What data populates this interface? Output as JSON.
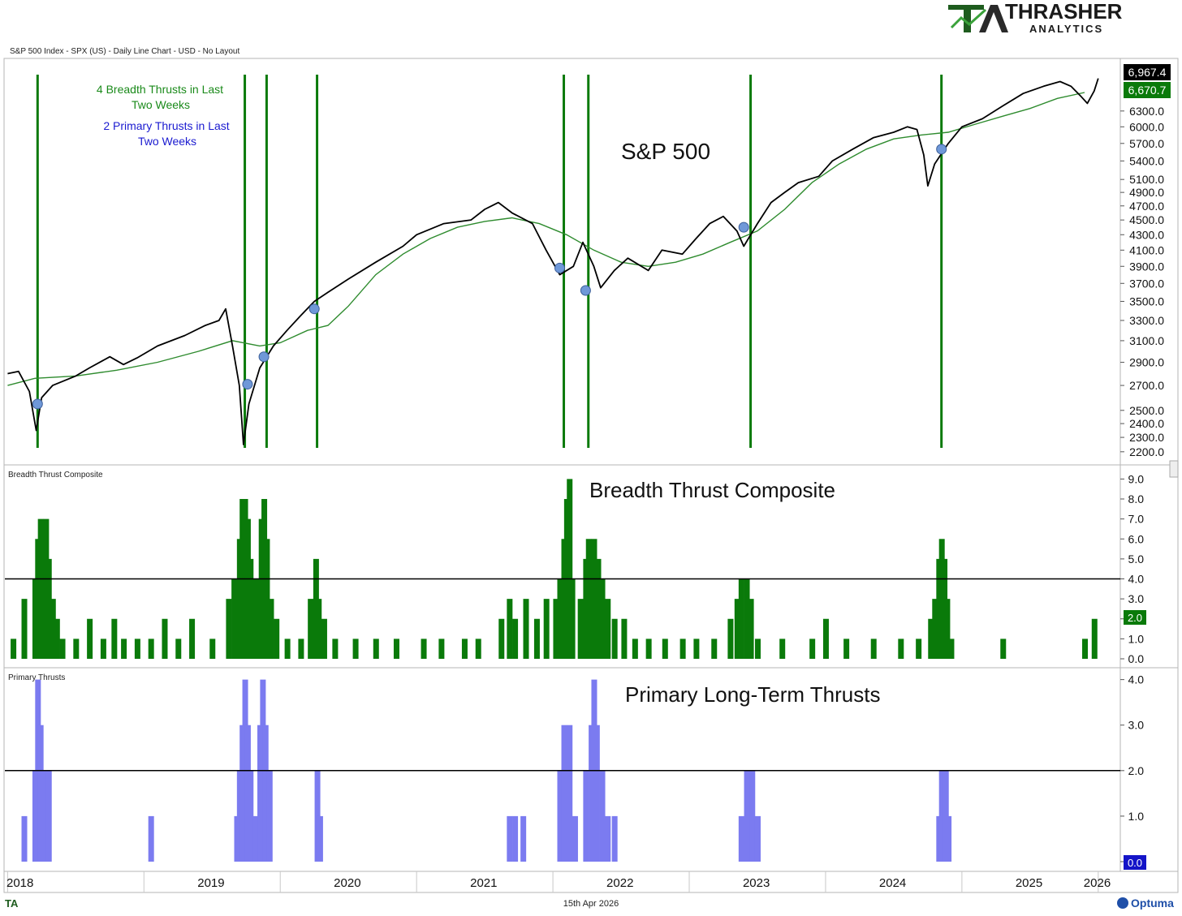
{
  "brand": {
    "name": "THRASHER",
    "sub": "ANALYTICS",
    "logo_mark": "TA"
  },
  "panel_subtitles": {
    "price": "S&P 500 Index - SPX (US) - Daily Line Chart - USD - No Layout",
    "composite": "Breadth Thrust Composite",
    "primary": "Primary Thrusts"
  },
  "panel_titles": {
    "price": "S&P 500",
    "composite": "Breadth Thrust Composite",
    "primary": "Primary Long-Term Thrusts"
  },
  "annotations": {
    "breadth": [
      "4 Breadth Thrusts in Last",
      "Two Weeks"
    ],
    "primary": [
      "2 Primary Thrusts in Last",
      "Two Weeks"
    ]
  },
  "value_tags": {
    "price": "6,967.4",
    "ma": "6,670.7",
    "composite": "2.0",
    "primary": "0.0"
  },
  "footer": {
    "date": "15th Apr 2026",
    "vendor": "Optuma",
    "logo": "TA"
  },
  "colors": {
    "thrust_line": "#0a7a0a",
    "composite_bar": "#0a7a0a",
    "primary_bar": "#7b7bf0",
    "ma_line": "#2e8b2e",
    "dot": "#6f98d8",
    "annotation_green": "#1a8a1a",
    "annotation_blue": "#1a1ad0"
  },
  "chart_data": [
    {
      "type": "line",
      "name": "S&P 500",
      "x_axis": [
        "2018",
        "2019",
        "2020",
        "2021",
        "2022",
        "2023",
        "2024",
        "2025",
        "2026"
      ],
      "y_ticks": [
        2200,
        2300,
        2400,
        2500,
        2700,
        2900,
        3100,
        3300,
        3500,
        3700,
        3900,
        4100,
        4300,
        4500,
        4700,
        4900,
        5100,
        5400,
        5700,
        6000,
        6300
      ],
      "ylim": [
        2150,
        7300
      ],
      "scale": "log",
      "series": [
        {
          "name": "S&P 500",
          "points": [
            [
              2018.0,
              2800
            ],
            [
              2018.08,
              2820
            ],
            [
              2018.16,
              2650
            ],
            [
              2018.21,
              2350
            ],
            [
              2018.25,
              2600
            ],
            [
              2018.33,
              2700
            ],
            [
              2018.5,
              2780
            ],
            [
              2018.6,
              2850
            ],
            [
              2018.75,
              2950
            ],
            [
              2018.85,
              2880
            ],
            [
              2018.95,
              2940
            ],
            [
              2019.1,
              3050
            ],
            [
              2019.3,
              3150
            ],
            [
              2019.45,
              3250
            ],
            [
              2019.55,
              3300
            ],
            [
              2019.6,
              3420
            ],
            [
              2019.65,
              3050
            ],
            [
              2019.7,
              2700
            ],
            [
              2019.73,
              2250
            ],
            [
              2019.77,
              2550
            ],
            [
              2019.85,
              2850
            ],
            [
              2019.95,
              3050
            ],
            [
              2020.05,
              3200
            ],
            [
              2020.15,
              3350
            ],
            [
              2020.25,
              3500
            ],
            [
              2020.35,
              3600
            ],
            [
              2020.5,
              3750
            ],
            [
              2020.7,
              3950
            ],
            [
              2020.9,
              4150
            ],
            [
              2021.0,
              4300
            ],
            [
              2021.2,
              4450
            ],
            [
              2021.4,
              4500
            ],
            [
              2021.5,
              4650
            ],
            [
              2021.55,
              4700
            ],
            [
              2021.6,
              4750
            ],
            [
              2021.7,
              4600
            ],
            [
              2021.85,
              4450
            ],
            [
              2021.95,
              4100
            ],
            [
              2022.05,
              3800
            ],
            [
              2022.15,
              3900
            ],
            [
              2022.22,
              4200
            ],
            [
              2022.3,
              3900
            ],
            [
              2022.35,
              3650
            ],
            [
              2022.45,
              3850
            ],
            [
              2022.55,
              4000
            ],
            [
              2022.7,
              3850
            ],
            [
              2022.8,
              4100
            ],
            [
              2022.95,
              4050
            ],
            [
              2023.05,
              4250
            ],
            [
              2023.15,
              4450
            ],
            [
              2023.25,
              4550
            ],
            [
              2023.35,
              4350
            ],
            [
              2023.4,
              4150
            ],
            [
              2023.5,
              4450
            ],
            [
              2023.6,
              4750
            ],
            [
              2023.7,
              4900
            ],
            [
              2023.8,
              5050
            ],
            [
              2023.95,
              5150
            ],
            [
              2024.05,
              5400
            ],
            [
              2024.2,
              5600
            ],
            [
              2024.35,
              5800
            ],
            [
              2024.5,
              5900
            ],
            [
              2024.6,
              6000
            ],
            [
              2024.67,
              5950
            ],
            [
              2024.72,
              5500
            ],
            [
              2024.75,
              5000
            ],
            [
              2024.8,
              5350
            ],
            [
              2024.9,
              5700
            ],
            [
              2025.0,
              6000
            ],
            [
              2025.15,
              6150
            ],
            [
              2025.3,
              6400
            ],
            [
              2025.45,
              6650
            ],
            [
              2025.6,
              6800
            ],
            [
              2025.72,
              6900
            ],
            [
              2025.8,
              6800
            ],
            [
              2025.87,
              6600
            ],
            [
              2025.92,
              6450
            ],
            [
              2025.97,
              6700
            ],
            [
              2026.0,
              6967.4
            ]
          ]
        },
        {
          "name": "Moving Average",
          "points": [
            [
              2018.0,
              2700
            ],
            [
              2018.2,
              2760
            ],
            [
              2018.5,
              2780
            ],
            [
              2018.8,
              2830
            ],
            [
              2019.1,
              2900
            ],
            [
              2019.4,
              3000
            ],
            [
              2019.65,
              3100
            ],
            [
              2019.85,
              3050
            ],
            [
              2020.0,
              3080
            ],
            [
              2020.2,
              3200
            ],
            [
              2020.35,
              3250
            ],
            [
              2020.5,
              3450
            ],
            [
              2020.7,
              3800
            ],
            [
              2020.9,
              4050
            ],
            [
              2021.1,
              4250
            ],
            [
              2021.3,
              4400
            ],
            [
              2021.5,
              4480
            ],
            [
              2021.7,
              4530
            ],
            [
              2021.9,
              4450
            ],
            [
              2022.1,
              4300
            ],
            [
              2022.3,
              4100
            ],
            [
              2022.5,
              3950
            ],
            [
              2022.7,
              3900
            ],
            [
              2022.9,
              3950
            ],
            [
              2023.1,
              4050
            ],
            [
              2023.3,
              4200
            ],
            [
              2023.5,
              4350
            ],
            [
              2023.7,
              4650
            ],
            [
              2023.9,
              5050
            ],
            [
              2024.1,
              5350
            ],
            [
              2024.3,
              5600
            ],
            [
              2024.5,
              5780
            ],
            [
              2024.7,
              5850
            ],
            [
              2024.9,
              5900
            ],
            [
              2025.1,
              6050
            ],
            [
              2025.3,
              6200
            ],
            [
              2025.5,
              6350
            ],
            [
              2025.7,
              6550
            ],
            [
              2025.9,
              6670.7
            ]
          ]
        }
      ],
      "dots": [
        [
          2018.22,
          2550
        ],
        [
          2019.76,
          2710
        ],
        [
          2019.88,
          2950
        ],
        [
          2020.25,
          3420
        ],
        [
          2022.05,
          3880
        ],
        [
          2022.24,
          3620
        ],
        [
          2023.4,
          4400
        ],
        [
          2024.85,
          5600
        ]
      ],
      "thrust_lines": [
        2018.22,
        2019.74,
        2019.9,
        2020.27,
        2022.08,
        2022.26,
        2023.45,
        2024.85
      ]
    },
    {
      "type": "bar",
      "name": "Breadth Thrust Composite",
      "y_ticks": [
        0,
        1,
        2,
        3,
        4,
        5,
        6,
        7,
        8,
        9
      ],
      "ylim": [
        0,
        9.3
      ],
      "reference": 4.0,
      "bars": [
        [
          2018.04,
          1
        ],
        [
          2018.12,
          3
        ],
        [
          2018.2,
          4
        ],
        [
          2018.22,
          6
        ],
        [
          2018.24,
          7
        ],
        [
          2018.26,
          6
        ],
        [
          2018.28,
          7
        ],
        [
          2018.3,
          5
        ],
        [
          2018.33,
          3
        ],
        [
          2018.36,
          2
        ],
        [
          2018.4,
          1
        ],
        [
          2018.5,
          1
        ],
        [
          2018.6,
          2
        ],
        [
          2018.7,
          1
        ],
        [
          2018.78,
          2
        ],
        [
          2018.85,
          1
        ],
        [
          2018.95,
          1
        ],
        [
          2019.05,
          1
        ],
        [
          2019.15,
          2
        ],
        [
          2019.25,
          1
        ],
        [
          2019.35,
          2
        ],
        [
          2019.5,
          1
        ],
        [
          2019.62,
          3
        ],
        [
          2019.66,
          4
        ],
        [
          2019.7,
          6
        ],
        [
          2019.72,
          8
        ],
        [
          2019.74,
          8
        ],
        [
          2019.76,
          7
        ],
        [
          2019.78,
          5
        ],
        [
          2019.82,
          4
        ],
        [
          2019.86,
          7
        ],
        [
          2019.88,
          8
        ],
        [
          2019.9,
          6
        ],
        [
          2019.93,
          3
        ],
        [
          2019.97,
          2
        ],
        [
          2020.05,
          1
        ],
        [
          2020.15,
          1
        ],
        [
          2020.22,
          3
        ],
        [
          2020.26,
          5
        ],
        [
          2020.28,
          3
        ],
        [
          2020.32,
          2
        ],
        [
          2020.4,
          1
        ],
        [
          2020.55,
          1
        ],
        [
          2020.7,
          1
        ],
        [
          2020.85,
          1
        ],
        [
          2021.05,
          1
        ],
        [
          2021.18,
          1
        ],
        [
          2021.35,
          1
        ],
        [
          2021.45,
          1
        ],
        [
          2021.62,
          2
        ],
        [
          2021.68,
          3
        ],
        [
          2021.72,
          2
        ],
        [
          2021.8,
          3
        ],
        [
          2021.88,
          2
        ],
        [
          2021.95,
          3
        ],
        [
          2022.02,
          3
        ],
        [
          2022.05,
          4
        ],
        [
          2022.08,
          6
        ],
        [
          2022.1,
          8
        ],
        [
          2022.12,
          9
        ],
        [
          2022.14,
          4
        ],
        [
          2022.2,
          3
        ],
        [
          2022.24,
          5
        ],
        [
          2022.26,
          6
        ],
        [
          2022.28,
          5
        ],
        [
          2022.3,
          6
        ],
        [
          2022.33,
          5
        ],
        [
          2022.36,
          4
        ],
        [
          2022.4,
          3
        ],
        [
          2022.45,
          2
        ],
        [
          2022.52,
          2
        ],
        [
          2022.6,
          1
        ],
        [
          2022.7,
          1
        ],
        [
          2022.82,
          1
        ],
        [
          2022.95,
          1
        ],
        [
          2023.05,
          1
        ],
        [
          2023.18,
          1
        ],
        [
          2023.3,
          2
        ],
        [
          2023.35,
          3
        ],
        [
          2023.38,
          4
        ],
        [
          2023.42,
          4
        ],
        [
          2023.45,
          3
        ],
        [
          2023.5,
          1
        ],
        [
          2023.68,
          1
        ],
        [
          2023.9,
          1
        ],
        [
          2024.0,
          2
        ],
        [
          2024.15,
          1
        ],
        [
          2024.35,
          1
        ],
        [
          2024.55,
          1
        ],
        [
          2024.68,
          1
        ],
        [
          2024.77,
          2
        ],
        [
          2024.8,
          3
        ],
        [
          2024.83,
          5
        ],
        [
          2024.85,
          6
        ],
        [
          2024.87,
          5
        ],
        [
          2024.89,
          3
        ],
        [
          2024.92,
          1
        ],
        [
          2025.3,
          1
        ],
        [
          2025.9,
          1
        ],
        [
          2025.97,
          2
        ]
      ]
    },
    {
      "type": "bar",
      "name": "Primary Thrusts",
      "y_ticks": [
        0,
        1,
        2,
        3,
        4
      ],
      "ylim": [
        0,
        4.1
      ],
      "reference": 2.0,
      "bars": [
        [
          2018.12,
          1
        ],
        [
          2018.2,
          2
        ],
        [
          2018.22,
          4
        ],
        [
          2018.24,
          3
        ],
        [
          2018.26,
          2
        ],
        [
          2018.3,
          2
        ],
        [
          2018.45,
          0
        ],
        [
          2019.05,
          1
        ],
        [
          2019.68,
          1
        ],
        [
          2019.7,
          2
        ],
        [
          2019.72,
          3
        ],
        [
          2019.74,
          4
        ],
        [
          2019.76,
          3
        ],
        [
          2019.78,
          2
        ],
        [
          2019.82,
          1
        ],
        [
          2019.85,
          3
        ],
        [
          2019.87,
          4
        ],
        [
          2019.89,
          3
        ],
        [
          2019.92,
          2
        ],
        [
          2020.27,
          2
        ],
        [
          2020.29,
          1
        ],
        [
          2021.68,
          1
        ],
        [
          2021.72,
          1
        ],
        [
          2021.78,
          1
        ],
        [
          2022.05,
          2
        ],
        [
          2022.08,
          3
        ],
        [
          2022.12,
          3
        ],
        [
          2022.16,
          1
        ],
        [
          2022.24,
          2
        ],
        [
          2022.28,
          3
        ],
        [
          2022.3,
          4
        ],
        [
          2022.32,
          3
        ],
        [
          2022.36,
          2
        ],
        [
          2022.4,
          1
        ],
        [
          2022.45,
          1
        ],
        [
          2023.38,
          1
        ],
        [
          2023.42,
          2
        ],
        [
          2023.46,
          2
        ],
        [
          2023.5,
          1
        ],
        [
          2024.83,
          1
        ],
        [
          2024.85,
          2
        ],
        [
          2024.88,
          2
        ],
        [
          2024.9,
          1
        ]
      ]
    }
  ]
}
